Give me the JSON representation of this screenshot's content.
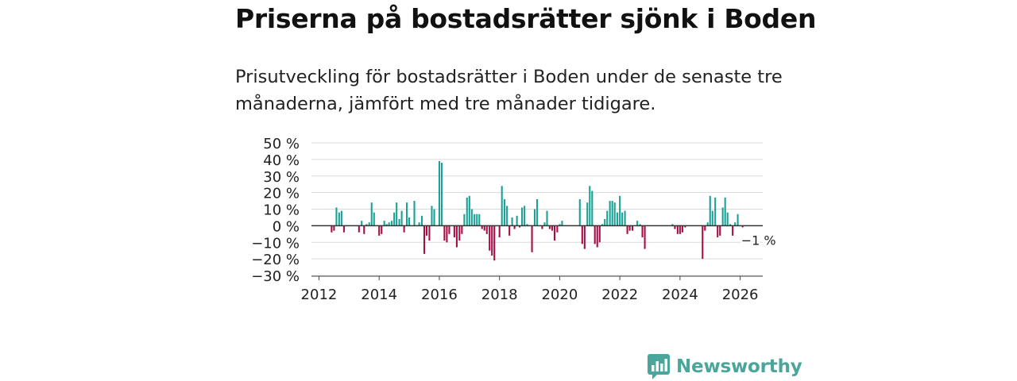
{
  "title": "Priserna på bostadsrätter sjönk i Boden",
  "subtitle": "Prisutveckling för bostadsrätter i Boden under de senaste tre månaderna, jämfört med tre månader tidigare.",
  "brand": "Newsworthy",
  "colors": {
    "positive": "#1aa196",
    "negative": "#a50e46",
    "grid": "#d9d9d9",
    "brand": "#4aa59a"
  },
  "chart_data": {
    "type": "bar",
    "y_tick_labels": [
      "50 %",
      "40 %",
      "30 %",
      "20 %",
      "10 %",
      "0 %",
      "−10 %",
      "−20 %",
      "−30 %"
    ],
    "y_ticks": [
      50,
      40,
      30,
      20,
      10,
      0,
      -10,
      -20,
      -30
    ],
    "x_tick_labels": [
      "2012",
      "2014",
      "2016",
      "2018",
      "2020",
      "2022",
      "2024",
      "2026"
    ],
    "x_ticks": [
      2012,
      2014,
      2016,
      2018,
      2020,
      2022,
      2024,
      2026
    ],
    "ylim": [
      -30,
      50
    ],
    "xlim": [
      2011.75,
      2026.75
    ],
    "annotation": "−1 %",
    "bar_width_years": 0.055,
    "points": [
      [
        2012.42,
        -4
      ],
      [
        2012.5,
        -3
      ],
      [
        2012.58,
        11
      ],
      [
        2012.67,
        8
      ],
      [
        2012.75,
        9
      ],
      [
        2012.83,
        -4
      ],
      [
        2013.33,
        -4
      ],
      [
        2013.42,
        3
      ],
      [
        2013.5,
        -5
      ],
      [
        2013.58,
        1
      ],
      [
        2013.67,
        2
      ],
      [
        2013.75,
        14
      ],
      [
        2013.83,
        8
      ],
      [
        2014.0,
        -6
      ],
      [
        2014.08,
        -5
      ],
      [
        2014.17,
        3
      ],
      [
        2014.25,
        1
      ],
      [
        2014.33,
        2
      ],
      [
        2014.42,
        3
      ],
      [
        2014.5,
        8
      ],
      [
        2014.58,
        14
      ],
      [
        2014.67,
        4
      ],
      [
        2014.75,
        9
      ],
      [
        2014.83,
        -4
      ],
      [
        2014.92,
        14
      ],
      [
        2015.0,
        5
      ],
      [
        2015.17,
        15
      ],
      [
        2015.33,
        2
      ],
      [
        2015.42,
        6
      ],
      [
        2015.5,
        -17
      ],
      [
        2015.58,
        -6
      ],
      [
        2015.67,
        -9
      ],
      [
        2015.75,
        12
      ],
      [
        2015.83,
        10
      ],
      [
        2016.0,
        39
      ],
      [
        2016.08,
        38
      ],
      [
        2016.17,
        -9
      ],
      [
        2016.25,
        -10
      ],
      [
        2016.33,
        -5
      ],
      [
        2016.5,
        -7
      ],
      [
        2016.58,
        -13
      ],
      [
        2016.67,
        -9
      ],
      [
        2016.75,
        -5
      ],
      [
        2016.83,
        7
      ],
      [
        2016.92,
        17
      ],
      [
        2017.0,
        18
      ],
      [
        2017.08,
        10
      ],
      [
        2017.17,
        7
      ],
      [
        2017.25,
        7
      ],
      [
        2017.33,
        7
      ],
      [
        2017.42,
        -2
      ],
      [
        2017.5,
        -3
      ],
      [
        2017.58,
        -5
      ],
      [
        2017.67,
        -15
      ],
      [
        2017.75,
        -18
      ],
      [
        2017.83,
        -21
      ],
      [
        2018.0,
        -7
      ],
      [
        2018.08,
        24
      ],
      [
        2018.17,
        16
      ],
      [
        2018.25,
        12
      ],
      [
        2018.33,
        -6
      ],
      [
        2018.42,
        5
      ],
      [
        2018.5,
        -2
      ],
      [
        2018.58,
        6
      ],
      [
        2018.67,
        -1
      ],
      [
        2018.75,
        11
      ],
      [
        2018.83,
        12
      ],
      [
        2018.92,
        1
      ],
      [
        2019.08,
        -16
      ],
      [
        2019.17,
        10
      ],
      [
        2019.25,
        16
      ],
      [
        2019.42,
        -2
      ],
      [
        2019.5,
        2
      ],
      [
        2019.58,
        9
      ],
      [
        2019.67,
        -2
      ],
      [
        2019.75,
        -3
      ],
      [
        2019.83,
        -9
      ],
      [
        2019.92,
        -4
      ],
      [
        2020.0,
        1
      ],
      [
        2020.08,
        3
      ],
      [
        2020.67,
        16
      ],
      [
        2020.75,
        -11
      ],
      [
        2020.83,
        -14
      ],
      [
        2020.92,
        14
      ],
      [
        2021.0,
        24
      ],
      [
        2021.08,
        21
      ],
      [
        2021.17,
        -11
      ],
      [
        2021.25,
        -13
      ],
      [
        2021.33,
        -10
      ],
      [
        2021.42,
        1
      ],
      [
        2021.5,
        4
      ],
      [
        2021.58,
        9
      ],
      [
        2021.67,
        15
      ],
      [
        2021.75,
        15
      ],
      [
        2021.83,
        14
      ],
      [
        2021.92,
        8
      ],
      [
        2022.0,
        18
      ],
      [
        2022.08,
        8
      ],
      [
        2022.17,
        9
      ],
      [
        2022.25,
        -5
      ],
      [
        2022.33,
        -3
      ],
      [
        2022.42,
        -3
      ],
      [
        2022.58,
        3
      ],
      [
        2022.67,
        1
      ],
      [
        2022.75,
        -7
      ],
      [
        2022.83,
        -14
      ],
      [
        2023.75,
        1
      ],
      [
        2023.83,
        -2
      ],
      [
        2023.92,
        -5
      ],
      [
        2024.0,
        -5
      ],
      [
        2024.08,
        -4
      ],
      [
        2024.17,
        -1
      ],
      [
        2024.75,
        -20
      ],
      [
        2024.83,
        -3
      ],
      [
        2024.92,
        2
      ],
      [
        2025.0,
        18
      ],
      [
        2025.08,
        9
      ],
      [
        2025.17,
        17
      ],
      [
        2025.25,
        -7
      ],
      [
        2025.33,
        -6
      ],
      [
        2025.42,
        11
      ],
      [
        2025.5,
        17
      ],
      [
        2025.58,
        8
      ],
      [
        2025.67,
        1
      ],
      [
        2025.75,
        -6
      ],
      [
        2025.83,
        2
      ],
      [
        2025.92,
        7
      ],
      [
        2026.08,
        -1
      ]
    ]
  }
}
